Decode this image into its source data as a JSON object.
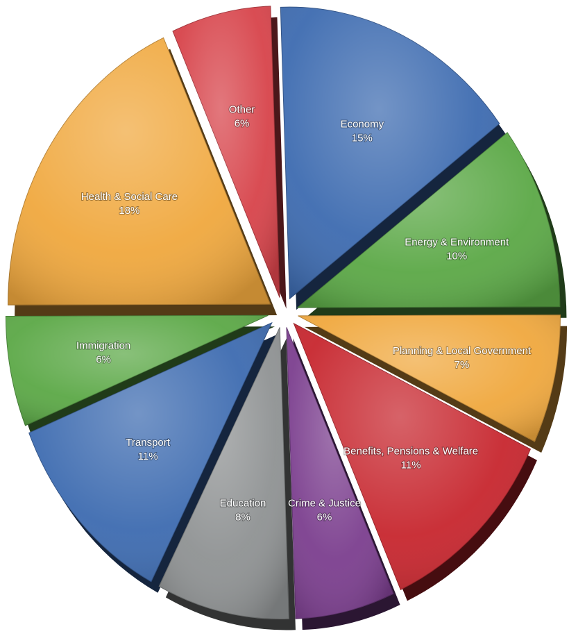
{
  "chart_data": {
    "type": "pie",
    "title": "",
    "slices": [
      {
        "label": "Economy",
        "value": 15,
        "value_label": "15%",
        "color": "#3d6bb0"
      },
      {
        "label": "Energy & Environment",
        "value": 10,
        "value_label": "10%",
        "color": "#5ba846"
      },
      {
        "label": "Planning & Local Government",
        "value": 7,
        "value_label": "7%",
        "color": "#f0a83e"
      },
      {
        "label": "Benefits, Pensions & Welfare",
        "value": 11,
        "value_label": "11%",
        "color": "#c7262e"
      },
      {
        "label": "Crime & Justice",
        "value": 6,
        "value_label": "6%",
        "color": "#7b3e8e"
      },
      {
        "label": "Education",
        "value": 8,
        "value_label": "8%",
        "color": "#8f9293"
      },
      {
        "label": "Transport",
        "value": 11,
        "value_label": "11%",
        "color": "#3d6bb0"
      },
      {
        "label": "Immigration",
        "value": 6,
        "value_label": "6%",
        "color": "#5ba846"
      },
      {
        "label": "Health & Social Care",
        "value": 18,
        "value_label": "18%",
        "color": "#f0a83e"
      },
      {
        "label": "Other",
        "value": 6,
        "value_label": "6%",
        "color": "#d7434a"
      }
    ],
    "legend": false
  }
}
